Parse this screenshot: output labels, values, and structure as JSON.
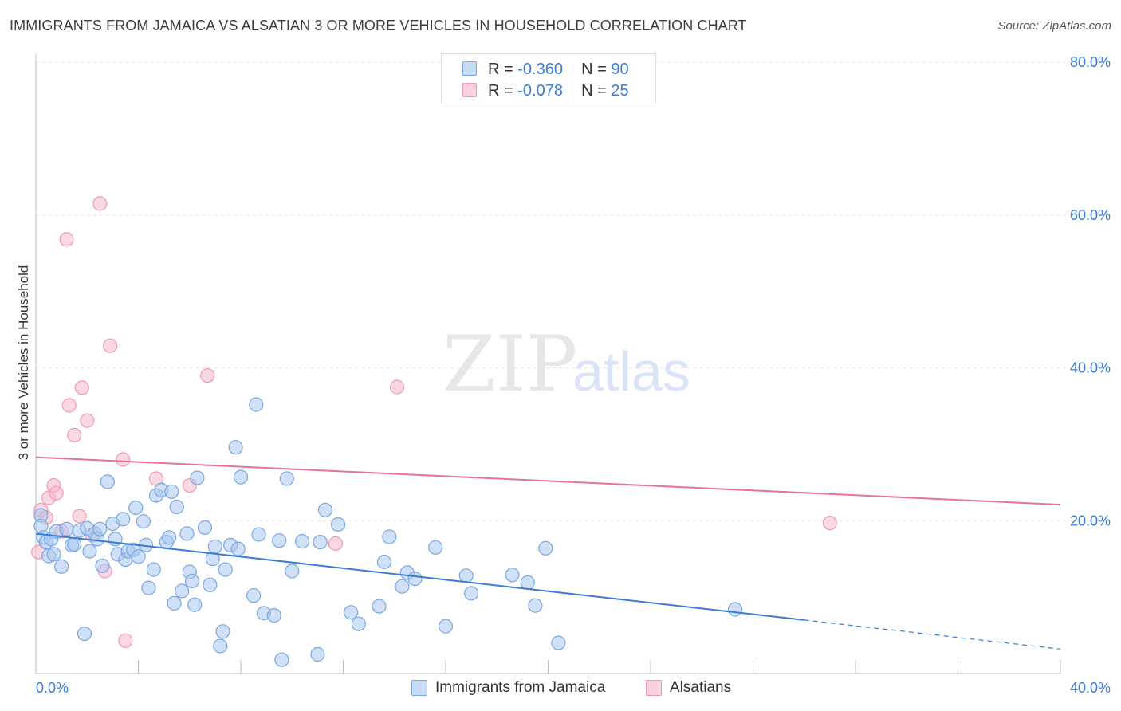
{
  "title": "IMMIGRANTS FROM JAMAICA VS ALSATIAN 3 OR MORE VEHICLES IN HOUSEHOLD CORRELATION CHART",
  "source": "Source: ZipAtlas.com",
  "watermark": {
    "zip": "ZIP",
    "atlas": "atlas"
  },
  "legend": {
    "rows": [
      {
        "r_label": "R = ",
        "r_value": "-0.360",
        "n_label": "N = ",
        "n_value": "90"
      },
      {
        "r_label": "R = ",
        "r_value": "-0.078",
        "n_label": "N = ",
        "n_value": "25"
      }
    ]
  },
  "chart_data": {
    "type": "scatter",
    "xlabel": "",
    "ylabel": "3 or more Vehicles in Household",
    "xlim": [
      0,
      40
    ],
    "ylim": [
      0,
      80
    ],
    "x_tick_labels": [
      "0.0%",
      "40.0%"
    ],
    "y_ticks": [
      20,
      40,
      60,
      80
    ],
    "y_tick_labels": [
      "20.0%",
      "40.0%",
      "60.0%",
      "80.0%"
    ],
    "grid": true,
    "legend_position": "top-center",
    "colors": {
      "blue_fill": "#a9c8f0",
      "blue_stroke": "#7aa7e0",
      "blue_line": "#3a7bd5",
      "pink_fill": "#f5b8cb",
      "pink_stroke": "#ee9ab4",
      "pink_line": "#e8709a",
      "tick_text": "#3b7dd8",
      "grid": "#e3e3e3"
    },
    "series": [
      {
        "name": "Immigrants from Jamaica",
        "color": "#a9c8f0",
        "trend": {
          "x": [
            0,
            30
          ],
          "y": [
            18.3,
            7.0
          ],
          "dashed_to": [
            40,
            3.2
          ]
        },
        "points": [
          [
            0.2,
            20.7
          ],
          [
            0.2,
            19.3
          ],
          [
            0.3,
            17.8
          ],
          [
            0.4,
            17.2
          ],
          [
            0.5,
            15.4
          ],
          [
            0.6,
            17.6
          ],
          [
            0.7,
            15.6
          ],
          [
            0.8,
            18.6
          ],
          [
            1.0,
            14.0
          ],
          [
            1.2,
            18.9
          ],
          [
            1.4,
            16.8
          ],
          [
            1.5,
            16.9
          ],
          [
            1.7,
            18.7
          ],
          [
            1.9,
            5.2
          ],
          [
            2.0,
            19.0
          ],
          [
            2.1,
            16.0
          ],
          [
            2.3,
            18.3
          ],
          [
            2.4,
            17.6
          ],
          [
            2.5,
            18.9
          ],
          [
            2.6,
            14.1
          ],
          [
            2.8,
            25.1
          ],
          [
            3.0,
            19.6
          ],
          [
            3.1,
            17.6
          ],
          [
            3.2,
            15.6
          ],
          [
            3.4,
            20.2
          ],
          [
            3.5,
            14.9
          ],
          [
            3.6,
            16.0
          ],
          [
            3.8,
            16.2
          ],
          [
            3.9,
            21.7
          ],
          [
            4.0,
            15.3
          ],
          [
            4.2,
            19.9
          ],
          [
            4.3,
            16.8
          ],
          [
            4.4,
            11.2
          ],
          [
            4.6,
            13.6
          ],
          [
            4.7,
            23.3
          ],
          [
            4.9,
            24.0
          ],
          [
            5.1,
            17.2
          ],
          [
            5.2,
            17.8
          ],
          [
            5.3,
            23.8
          ],
          [
            5.4,
            9.2
          ],
          [
            5.5,
            21.8
          ],
          [
            5.7,
            10.8
          ],
          [
            5.9,
            18.3
          ],
          [
            6.0,
            13.3
          ],
          [
            6.1,
            12.1
          ],
          [
            6.2,
            9.0
          ],
          [
            6.3,
            25.6
          ],
          [
            6.6,
            19.1
          ],
          [
            6.8,
            11.6
          ],
          [
            6.9,
            15.0
          ],
          [
            7.0,
            16.6
          ],
          [
            7.2,
            3.6
          ],
          [
            7.3,
            5.5
          ],
          [
            7.4,
            13.6
          ],
          [
            7.6,
            16.8
          ],
          [
            7.8,
            29.6
          ],
          [
            7.9,
            16.3
          ],
          [
            8.0,
            25.7
          ],
          [
            8.5,
            10.2
          ],
          [
            8.6,
            35.2
          ],
          [
            8.7,
            18.2
          ],
          [
            8.9,
            7.9
          ],
          [
            9.3,
            7.6
          ],
          [
            9.5,
            17.4
          ],
          [
            9.6,
            1.8
          ],
          [
            9.8,
            25.5
          ],
          [
            10.0,
            13.4
          ],
          [
            10.4,
            17.3
          ],
          [
            11.0,
            2.5
          ],
          [
            11.1,
            17.2
          ],
          [
            11.3,
            21.4
          ],
          [
            11.8,
            19.5
          ],
          [
            12.3,
            8.0
          ],
          [
            12.6,
            6.5
          ],
          [
            13.4,
            8.8
          ],
          [
            13.6,
            14.6
          ],
          [
            13.8,
            17.9
          ],
          [
            14.3,
            11.4
          ],
          [
            14.5,
            13.2
          ],
          [
            14.8,
            12.4
          ],
          [
            15.6,
            16.5
          ],
          [
            16.0,
            6.2
          ],
          [
            16.8,
            12.8
          ],
          [
            17.0,
            10.5
          ],
          [
            18.6,
            12.9
          ],
          [
            19.2,
            11.9
          ],
          [
            19.5,
            8.9
          ],
          [
            19.9,
            16.4
          ],
          [
            20.4,
            4.0
          ],
          [
            27.3,
            8.4
          ]
        ]
      },
      {
        "name": "Alsatians",
        "color": "#f5b8cb",
        "trend": {
          "x": [
            0,
            40
          ],
          "y": [
            28.3,
            22.1
          ]
        },
        "points": [
          [
            0.1,
            15.9
          ],
          [
            0.2,
            21.4
          ],
          [
            0.4,
            20.4
          ],
          [
            0.5,
            23.0
          ],
          [
            0.7,
            24.6
          ],
          [
            0.8,
            23.6
          ],
          [
            1.0,
            18.6
          ],
          [
            1.2,
            56.8
          ],
          [
            1.3,
            35.1
          ],
          [
            1.5,
            31.2
          ],
          [
            1.7,
            20.6
          ],
          [
            1.8,
            37.4
          ],
          [
            2.0,
            33.1
          ],
          [
            2.2,
            18.1
          ],
          [
            2.5,
            61.5
          ],
          [
            2.7,
            13.4
          ],
          [
            2.9,
            42.9
          ],
          [
            3.4,
            28.0
          ],
          [
            3.5,
            4.3
          ],
          [
            4.7,
            25.5
          ],
          [
            6.0,
            24.6
          ],
          [
            6.7,
            39.0
          ],
          [
            11.7,
            17.0
          ],
          [
            14.1,
            37.5
          ],
          [
            31.0,
            19.7
          ]
        ]
      }
    ]
  },
  "bottom_legend": [
    {
      "label": "Immigrants from Jamaica"
    },
    {
      "label": "Alsatians"
    }
  ]
}
